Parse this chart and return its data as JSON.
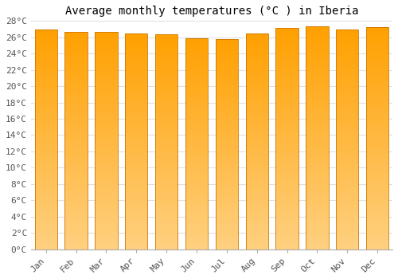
{
  "title": "Average monthly temperatures (°C ) in Iberia",
  "months": [
    "Jan",
    "Feb",
    "Mar",
    "Apr",
    "May",
    "Jun",
    "Jul",
    "Aug",
    "Sep",
    "Oct",
    "Nov",
    "Dec"
  ],
  "values": [
    27.0,
    26.7,
    26.7,
    26.5,
    26.4,
    25.9,
    25.8,
    26.5,
    27.1,
    27.3,
    27.0,
    27.2
  ],
  "ytick_labels": [
    "0°C",
    "2°C",
    "4°C",
    "6°C",
    "8°C",
    "10°C",
    "12°C",
    "14°C",
    "16°C",
    "18°C",
    "20°C",
    "22°C",
    "24°C",
    "26°C",
    "28°C"
  ],
  "ytick_values": [
    0,
    2,
    4,
    6,
    8,
    10,
    12,
    14,
    16,
    18,
    20,
    22,
    24,
    26,
    28
  ],
  "ylim": [
    0,
    28
  ],
  "background_color": "#ffffff",
  "grid_color": "#e0e0e0",
  "title_fontsize": 10,
  "tick_fontsize": 8,
  "bar_edge_color": "#cc7700",
  "bar_width": 0.75,
  "bar_color_top": "#F5A800",
  "bar_color_bottom": "#FFD080",
  "figsize": [
    5.0,
    3.5
  ],
  "dpi": 100
}
